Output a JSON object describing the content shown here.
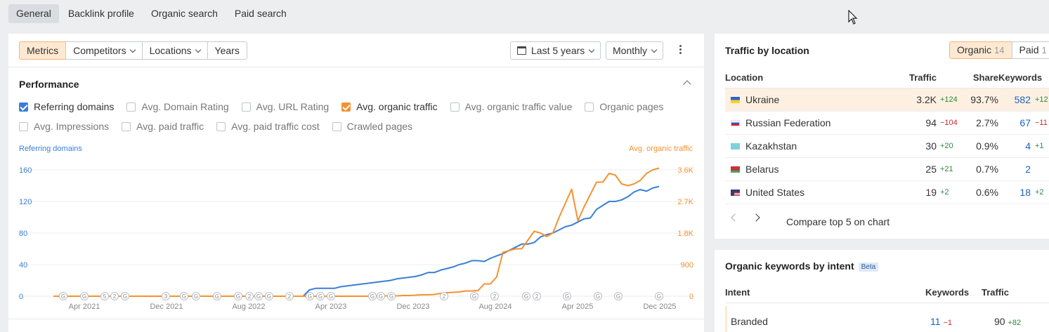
{
  "topnav": {
    "tabs": [
      "General",
      "Backlink profile",
      "Organic search",
      "Paid search"
    ]
  },
  "toolbar": {
    "segments": [
      "Metrics",
      "Competitors",
      "Locations",
      "Years"
    ],
    "period": "Last 5 years",
    "interval": "Monthly"
  },
  "performance": {
    "title": "Performance",
    "checkboxes_row1": [
      {
        "label": "Referring domains",
        "checked": true,
        "color": "#3a7fd5"
      },
      {
        "label": "Avg. Domain Rating",
        "checked": false
      },
      {
        "label": "Avg. URL Rating",
        "checked": false
      },
      {
        "label": "Avg. organic traffic",
        "checked": true,
        "color": "#f5922f"
      },
      {
        "label": "Avg. organic traffic value",
        "checked": false
      },
      {
        "label": "Organic pages",
        "checked": false
      }
    ],
    "checkboxes_row2": [
      {
        "label": "Avg. Impressions",
        "checked": false
      },
      {
        "label": "Avg. paid traffic",
        "checked": false
      },
      {
        "label": "Avg. paid traffic cost",
        "checked": false
      },
      {
        "label": "Crawled pages",
        "checked": false
      }
    ]
  },
  "chart_data": {
    "type": "line",
    "ylabel_left": "Referring domains",
    "ylabel_right": "Avg. organic traffic",
    "y_left_ticks": [
      "0",
      "40",
      "80",
      "120",
      "160"
    ],
    "y_right_ticks": [
      "0",
      "900",
      "1.8K",
      "2.7K",
      "3.6K"
    ],
    "ylim_left": [
      0,
      160
    ],
    "ylim_right": [
      0,
      3600
    ],
    "x_ticks": [
      "Apr 2021",
      "Dec 2021",
      "Aug 2022",
      "Apr 2023",
      "Dec 2023",
      "Aug 2024",
      "Apr 2025",
      "Dec 2025"
    ],
    "series": [
      {
        "name": "Referring domains",
        "color": "#3a7fd5",
        "axis": "left",
        "values": [
          0,
          0,
          0,
          0,
          0,
          0,
          0,
          0,
          0,
          0,
          0,
          0,
          0,
          0,
          0,
          0,
          0,
          0,
          0,
          0,
          0,
          0,
          0,
          0,
          0,
          0,
          0,
          0,
          0,
          0,
          0,
          0,
          0,
          0,
          0,
          0,
          0,
          0,
          0,
          0,
          0,
          8,
          10,
          10,
          10,
          10,
          12,
          13,
          14,
          15,
          16,
          17,
          18,
          19,
          20,
          22,
          23,
          24,
          25,
          27,
          30,
          30,
          33,
          35,
          37,
          40,
          42,
          45,
          45,
          44,
          48,
          51,
          54,
          58,
          62,
          66,
          66,
          68,
          75,
          78,
          80,
          84,
          88,
          90,
          94,
          98,
          99,
          110,
          115,
          120,
          120,
          122,
          126,
          132,
          135,
          133,
          137,
          139
        ]
      },
      {
        "name": "Avg. organic traffic",
        "color": "#f5922f",
        "axis": "right",
        "values": [
          0,
          0,
          0,
          0,
          0,
          0,
          0,
          0,
          0,
          0,
          0,
          0,
          0,
          0,
          0,
          0,
          0,
          0,
          0,
          0,
          0,
          0,
          0,
          0,
          0,
          0,
          0,
          0,
          0,
          0,
          0,
          0,
          0,
          0,
          0,
          0,
          0,
          0,
          0,
          0,
          0,
          0,
          0,
          0,
          0,
          0,
          0,
          0,
          0,
          0,
          0,
          0,
          10,
          10,
          10,
          10,
          20,
          20,
          30,
          40,
          40,
          50,
          80,
          100,
          110,
          120,
          150,
          150,
          160,
          350,
          350,
          550,
          1250,
          1300,
          1350,
          1350,
          1600,
          1850,
          1800,
          1700,
          1800,
          2250,
          2650,
          3050,
          2150,
          2550,
          2900,
          3250,
          3250,
          3500,
          3450,
          3200,
          3150,
          3200,
          3300,
          3500,
          3600,
          3650
        ]
      }
    ],
    "annotations_count": 28
  },
  "traffic_by_location": {
    "title": "Traffic by location",
    "toggle": [
      {
        "label": "Organic",
        "count": "14"
      },
      {
        "label": "Paid",
        "count": "1"
      }
    ],
    "headers": [
      "Location",
      "Traffic",
      "Share",
      "Keywords"
    ],
    "rows": [
      {
        "location": "Ukraine",
        "traffic": "3.2K",
        "traffic_delta": "+124",
        "share": "93.7%",
        "keywords": "582",
        "kw_delta": "+12",
        "flag": "ua"
      },
      {
        "location": "Russian Federation",
        "traffic": "94",
        "traffic_delta": "−104",
        "share": "2.7%",
        "keywords": "67",
        "kw_delta": "−11",
        "flag": "ru"
      },
      {
        "location": "Kazakhstan",
        "traffic": "30",
        "traffic_delta": "+20",
        "share": "0.9%",
        "keywords": "4",
        "kw_delta": "+1",
        "flag": "kz"
      },
      {
        "location": "Belarus",
        "traffic": "25",
        "traffic_delta": "+21",
        "share": "0.7%",
        "keywords": "2",
        "kw_delta": "",
        "flag": "by"
      },
      {
        "location": "United States",
        "traffic": "19",
        "traffic_delta": "+2",
        "share": "0.6%",
        "keywords": "18",
        "kw_delta": "+2",
        "flag": "us"
      }
    ],
    "compare_label": "Compare top 5 on chart"
  },
  "keywords_by_intent": {
    "title": "Organic keywords by intent",
    "badge": "Beta",
    "headers": [
      "Intent",
      "Keywords",
      "Traffic"
    ],
    "rows": [
      {
        "intent": "Branded",
        "keywords": "11",
        "kw_delta": "−1",
        "traffic": "90",
        "traffic_delta": "+82"
      }
    ]
  }
}
